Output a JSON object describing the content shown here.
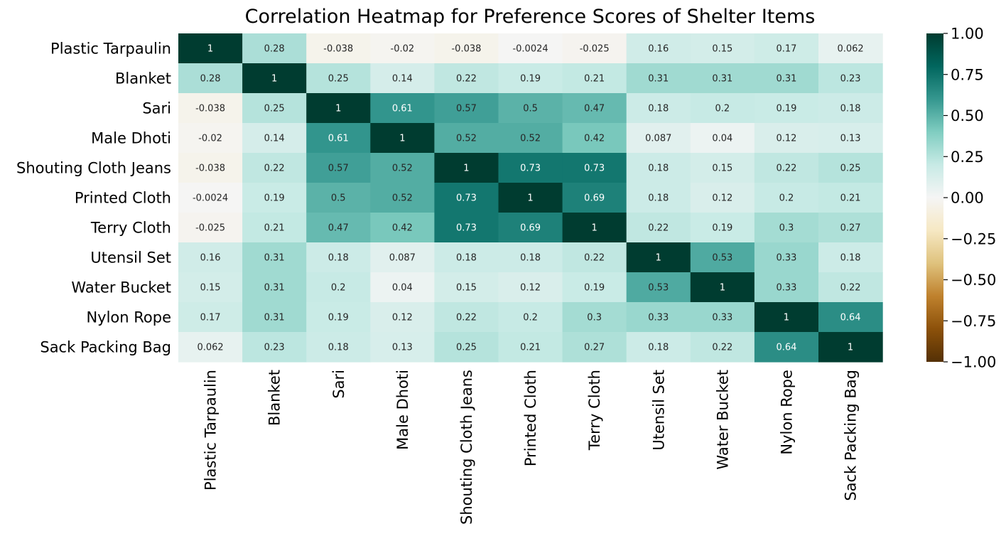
{
  "chart_data": {
    "type": "heatmap",
    "title": "Correlation Heatmap for Preference Scores of Shelter Items",
    "xlabel": "",
    "ylabel": "",
    "row_labels": [
      "Plastic Tarpaulin",
      "Blanket",
      "Sari",
      "Male Dhoti",
      "Shouting Cloth Jeans",
      "Printed Cloth",
      "Terry Cloth",
      "Utensil Set",
      "Water Bucket",
      "Nylon Rope",
      "Sack Packing Bag"
    ],
    "col_labels": [
      "Plastic Tarpaulin",
      "Blanket",
      "Sari",
      "Male Dhoti",
      "Shouting Cloth Jeans",
      "Printed Cloth",
      "Terry Cloth",
      "Utensil Set",
      "Water Bucket",
      "Nylon Rope",
      "Sack Packing Bag"
    ],
    "values": [
      [
        1,
        0.28,
        -0.038,
        -0.02,
        -0.038,
        -0.0024,
        -0.025,
        0.16,
        0.15,
        0.17,
        0.062
      ],
      [
        0.28,
        1,
        0.25,
        0.14,
        0.22,
        0.19,
        0.21,
        0.31,
        0.31,
        0.31,
        0.23
      ],
      [
        -0.038,
        0.25,
        1,
        0.61,
        0.57,
        0.5,
        0.47,
        0.18,
        0.2,
        0.19,
        0.18
      ],
      [
        -0.02,
        0.14,
        0.61,
        1,
        0.52,
        0.52,
        0.42,
        0.087,
        0.04,
        0.12,
        0.13
      ],
      [
        -0.038,
        0.22,
        0.57,
        0.52,
        1,
        0.73,
        0.73,
        0.18,
        0.15,
        0.22,
        0.25
      ],
      [
        -0.0024,
        0.19,
        0.5,
        0.52,
        0.73,
        1,
        0.69,
        0.18,
        0.12,
        0.2,
        0.21
      ],
      [
        -0.025,
        0.21,
        0.47,
        0.42,
        0.73,
        0.69,
        1,
        0.22,
        0.19,
        0.3,
        0.27
      ],
      [
        0.16,
        0.31,
        0.18,
        0.087,
        0.18,
        0.18,
        0.22,
        1,
        0.53,
        0.33,
        0.18
      ],
      [
        0.15,
        0.31,
        0.2,
        0.04,
        0.15,
        0.12,
        0.19,
        0.53,
        1,
        0.33,
        0.22
      ],
      [
        0.17,
        0.31,
        0.19,
        0.12,
        0.22,
        0.2,
        0.3,
        0.33,
        0.33,
        1,
        0.64
      ],
      [
        0.062,
        0.23,
        0.18,
        0.13,
        0.25,
        0.21,
        0.27,
        0.18,
        0.22,
        0.64,
        1
      ]
    ],
    "value_range": [
      -1,
      1
    ],
    "colormap": "BrBG",
    "colorbar_ticks": [
      "−1.00",
      "−0.75",
      "−0.50",
      "−0.25",
      "0.00",
      "0.25",
      "0.50",
      "0.75",
      "1.00"
    ],
    "colorbar_tick_values": [
      -1,
      -0.75,
      -0.5,
      -0.25,
      0,
      0.25,
      0.5,
      0.75,
      1
    ],
    "annotations": true,
    "grid": false,
    "colors": {
      "stops": [
        "#543005",
        "#8c510a",
        "#bf812d",
        "#dfc27d",
        "#f6e8c3",
        "#f5f5f5",
        "#c7eae5",
        "#80cdc1",
        "#35978f",
        "#01665e",
        "#003c30"
      ],
      "text_dark": "#262626",
      "text_light": "#ffffff"
    }
  }
}
